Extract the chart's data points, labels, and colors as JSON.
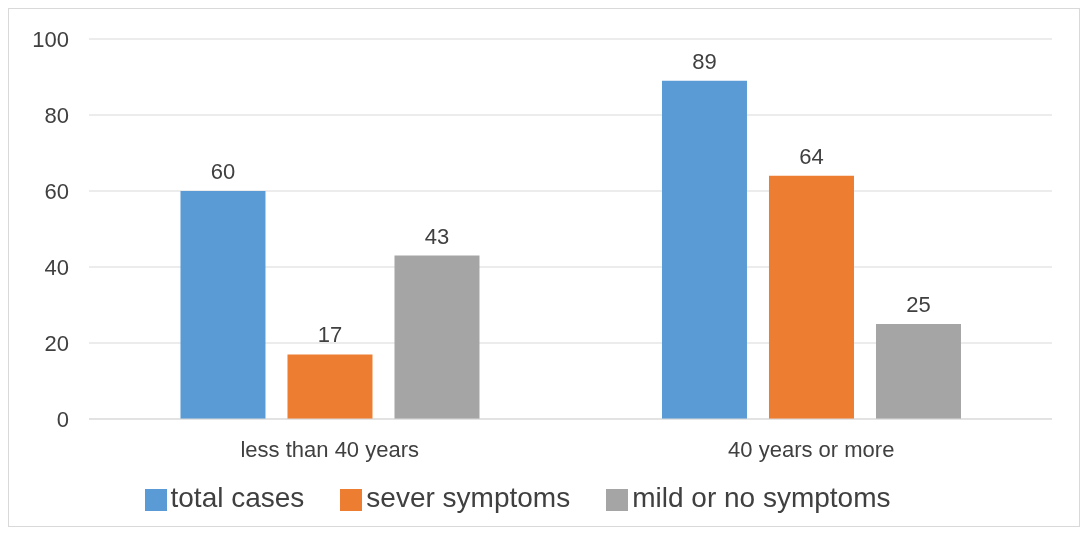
{
  "chart_data": {
    "type": "bar",
    "categories": [
      "less than 40 years",
      "40 years or more"
    ],
    "series": [
      {
        "name": "total cases",
        "color": "#5b9bd5",
        "values": [
          60,
          89
        ]
      },
      {
        "name": "sever symptoms",
        "color": "#ed7d31",
        "values": [
          17,
          64
        ]
      },
      {
        "name": "mild or no symptoms",
        "color": "#a5a5a5",
        "values": [
          43,
          25
        ]
      }
    ],
    "ylim": [
      0,
      100
    ],
    "yticks": [
      0,
      20,
      40,
      60,
      80,
      100
    ],
    "grid": "y",
    "legend": "bottom",
    "data_labels": true
  }
}
